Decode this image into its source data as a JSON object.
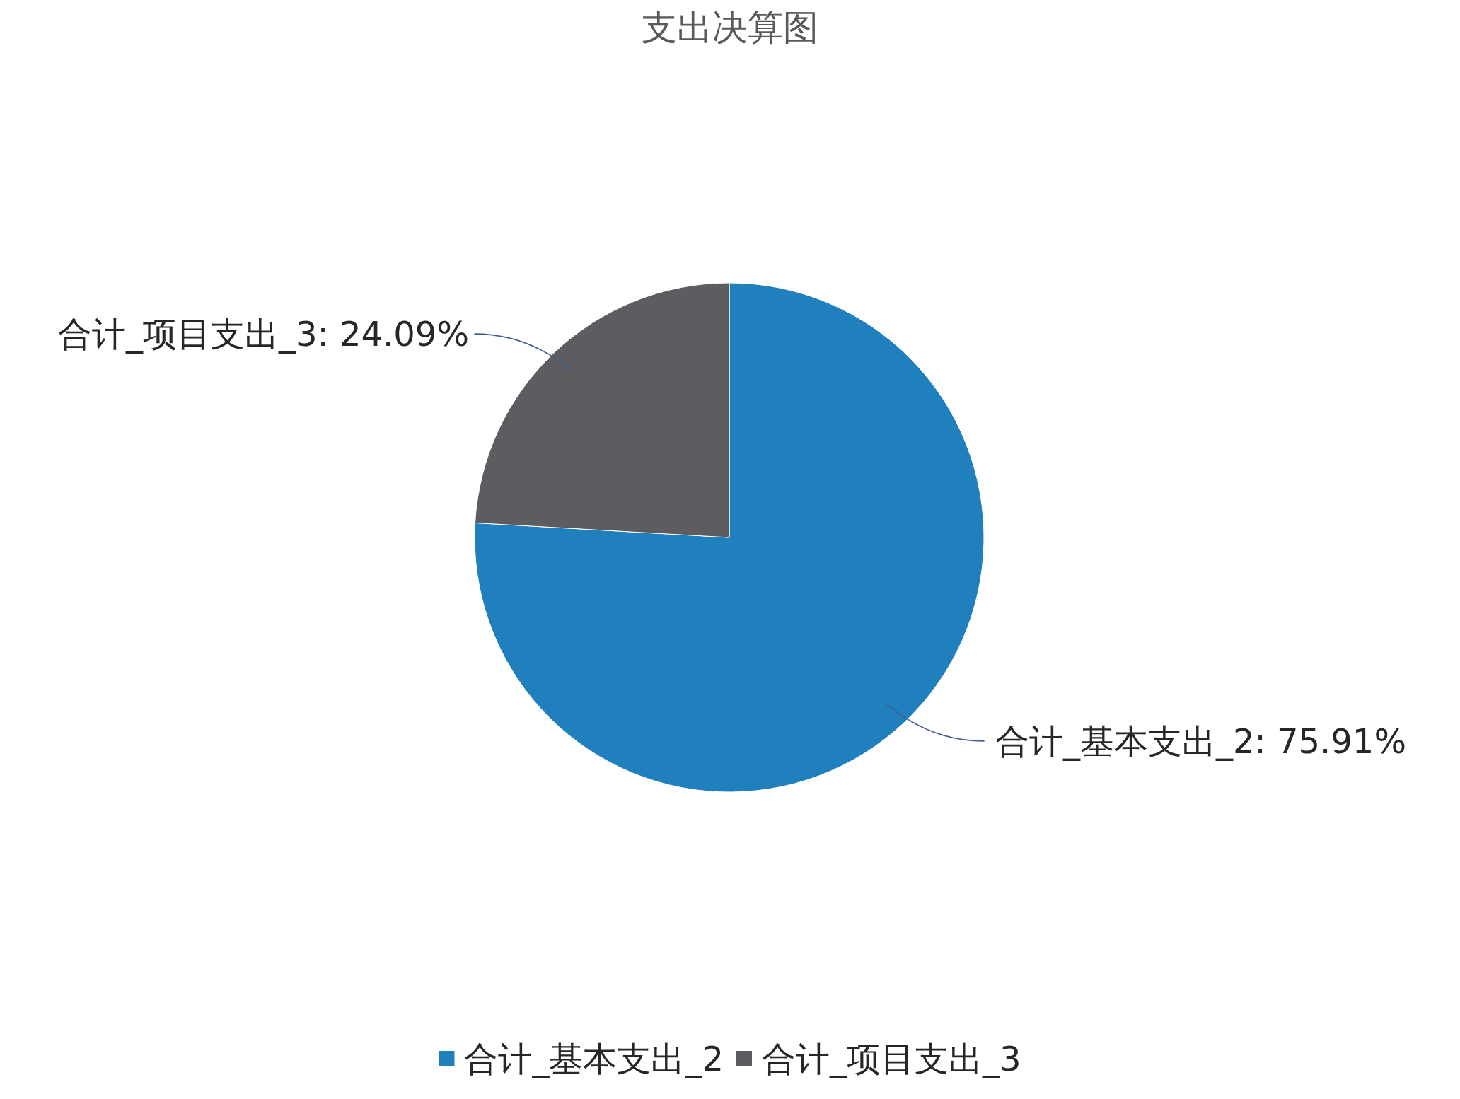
{
  "chart_data": {
    "type": "pie",
    "title": "支出决算图",
    "categories": [
      "合计_基本支出_2",
      "合计_项目支出_3"
    ],
    "values": [
      75.91,
      24.09
    ],
    "colors": [
      "#1f80bd",
      "#5c5c61"
    ],
    "value_labels": [
      "合计_基本支出_2: 75.91%",
      "合计_项目支出_3: 24.09%"
    ],
    "legend": "bottom"
  }
}
